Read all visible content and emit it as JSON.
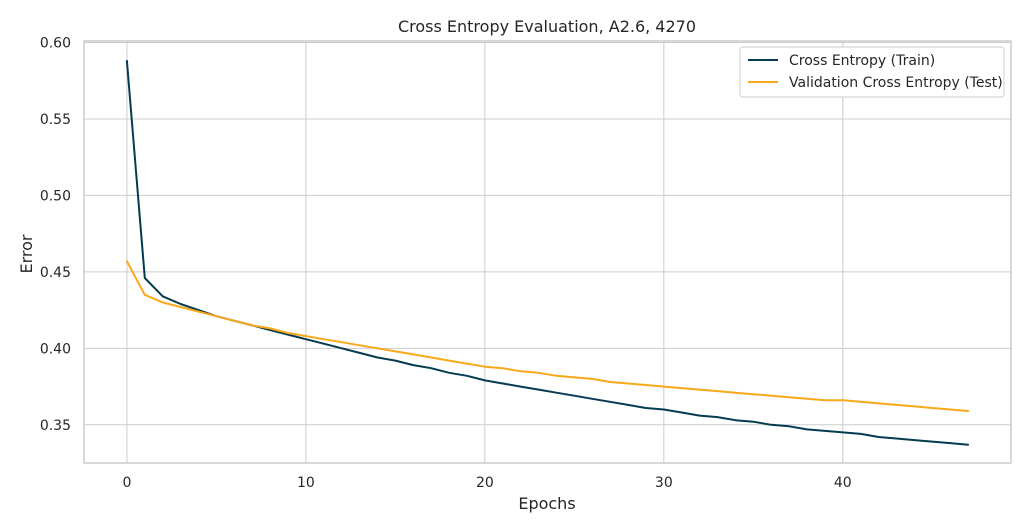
{
  "chart_data": {
    "type": "line",
    "title": "Cross Entropy Evaluation, A2.6, 4270",
    "xlabel": "Epochs",
    "ylabel": "Error",
    "xlim": [
      -2.4,
      49.4
    ],
    "ylim": [
      0.325,
      0.601
    ],
    "xticks": [
      0,
      10,
      20,
      30,
      40
    ],
    "yticks": [
      0.35,
      0.4,
      0.45,
      0.5,
      0.55,
      0.6
    ],
    "grid": true,
    "legend_position": "top-right",
    "x": [
      0,
      1,
      2,
      3,
      4,
      5,
      6,
      7,
      8,
      9,
      10,
      11,
      12,
      13,
      14,
      15,
      16,
      17,
      18,
      19,
      20,
      21,
      22,
      23,
      24,
      25,
      26,
      27,
      28,
      29,
      30,
      31,
      32,
      33,
      34,
      35,
      36,
      37,
      38,
      39,
      40,
      41,
      42,
      43,
      44,
      45,
      46,
      47
    ],
    "series": [
      {
        "name": "Cross Entropy (Train)",
        "color": "#053b50",
        "values": [
          0.588,
          0.446,
          0.434,
          0.429,
          0.425,
          0.421,
          0.418,
          0.415,
          0.412,
          0.409,
          0.406,
          0.403,
          0.4,
          0.397,
          0.394,
          0.392,
          0.389,
          0.387,
          0.384,
          0.382,
          0.379,
          0.377,
          0.375,
          0.373,
          0.371,
          0.369,
          0.367,
          0.365,
          0.363,
          0.361,
          0.36,
          0.358,
          0.356,
          0.355,
          0.353,
          0.352,
          0.35,
          0.349,
          0.347,
          0.346,
          0.345,
          0.344,
          0.342,
          0.341,
          0.34,
          0.339,
          0.338,
          0.337
        ]
      },
      {
        "name": "Validation Cross Entropy (Test)",
        "color": "#f9a81a",
        "values": [
          0.457,
          0.435,
          0.43,
          0.427,
          0.424,
          0.421,
          0.418,
          0.415,
          0.413,
          0.41,
          0.408,
          0.406,
          0.404,
          0.402,
          0.4,
          0.398,
          0.396,
          0.394,
          0.392,
          0.39,
          0.388,
          0.387,
          0.385,
          0.384,
          0.382,
          0.381,
          0.38,
          0.378,
          0.377,
          0.376,
          0.375,
          0.374,
          0.373,
          0.372,
          0.371,
          0.37,
          0.369,
          0.368,
          0.367,
          0.366,
          0.366,
          0.365,
          0.364,
          0.363,
          0.362,
          0.361,
          0.36,
          0.359
        ]
      }
    ]
  }
}
